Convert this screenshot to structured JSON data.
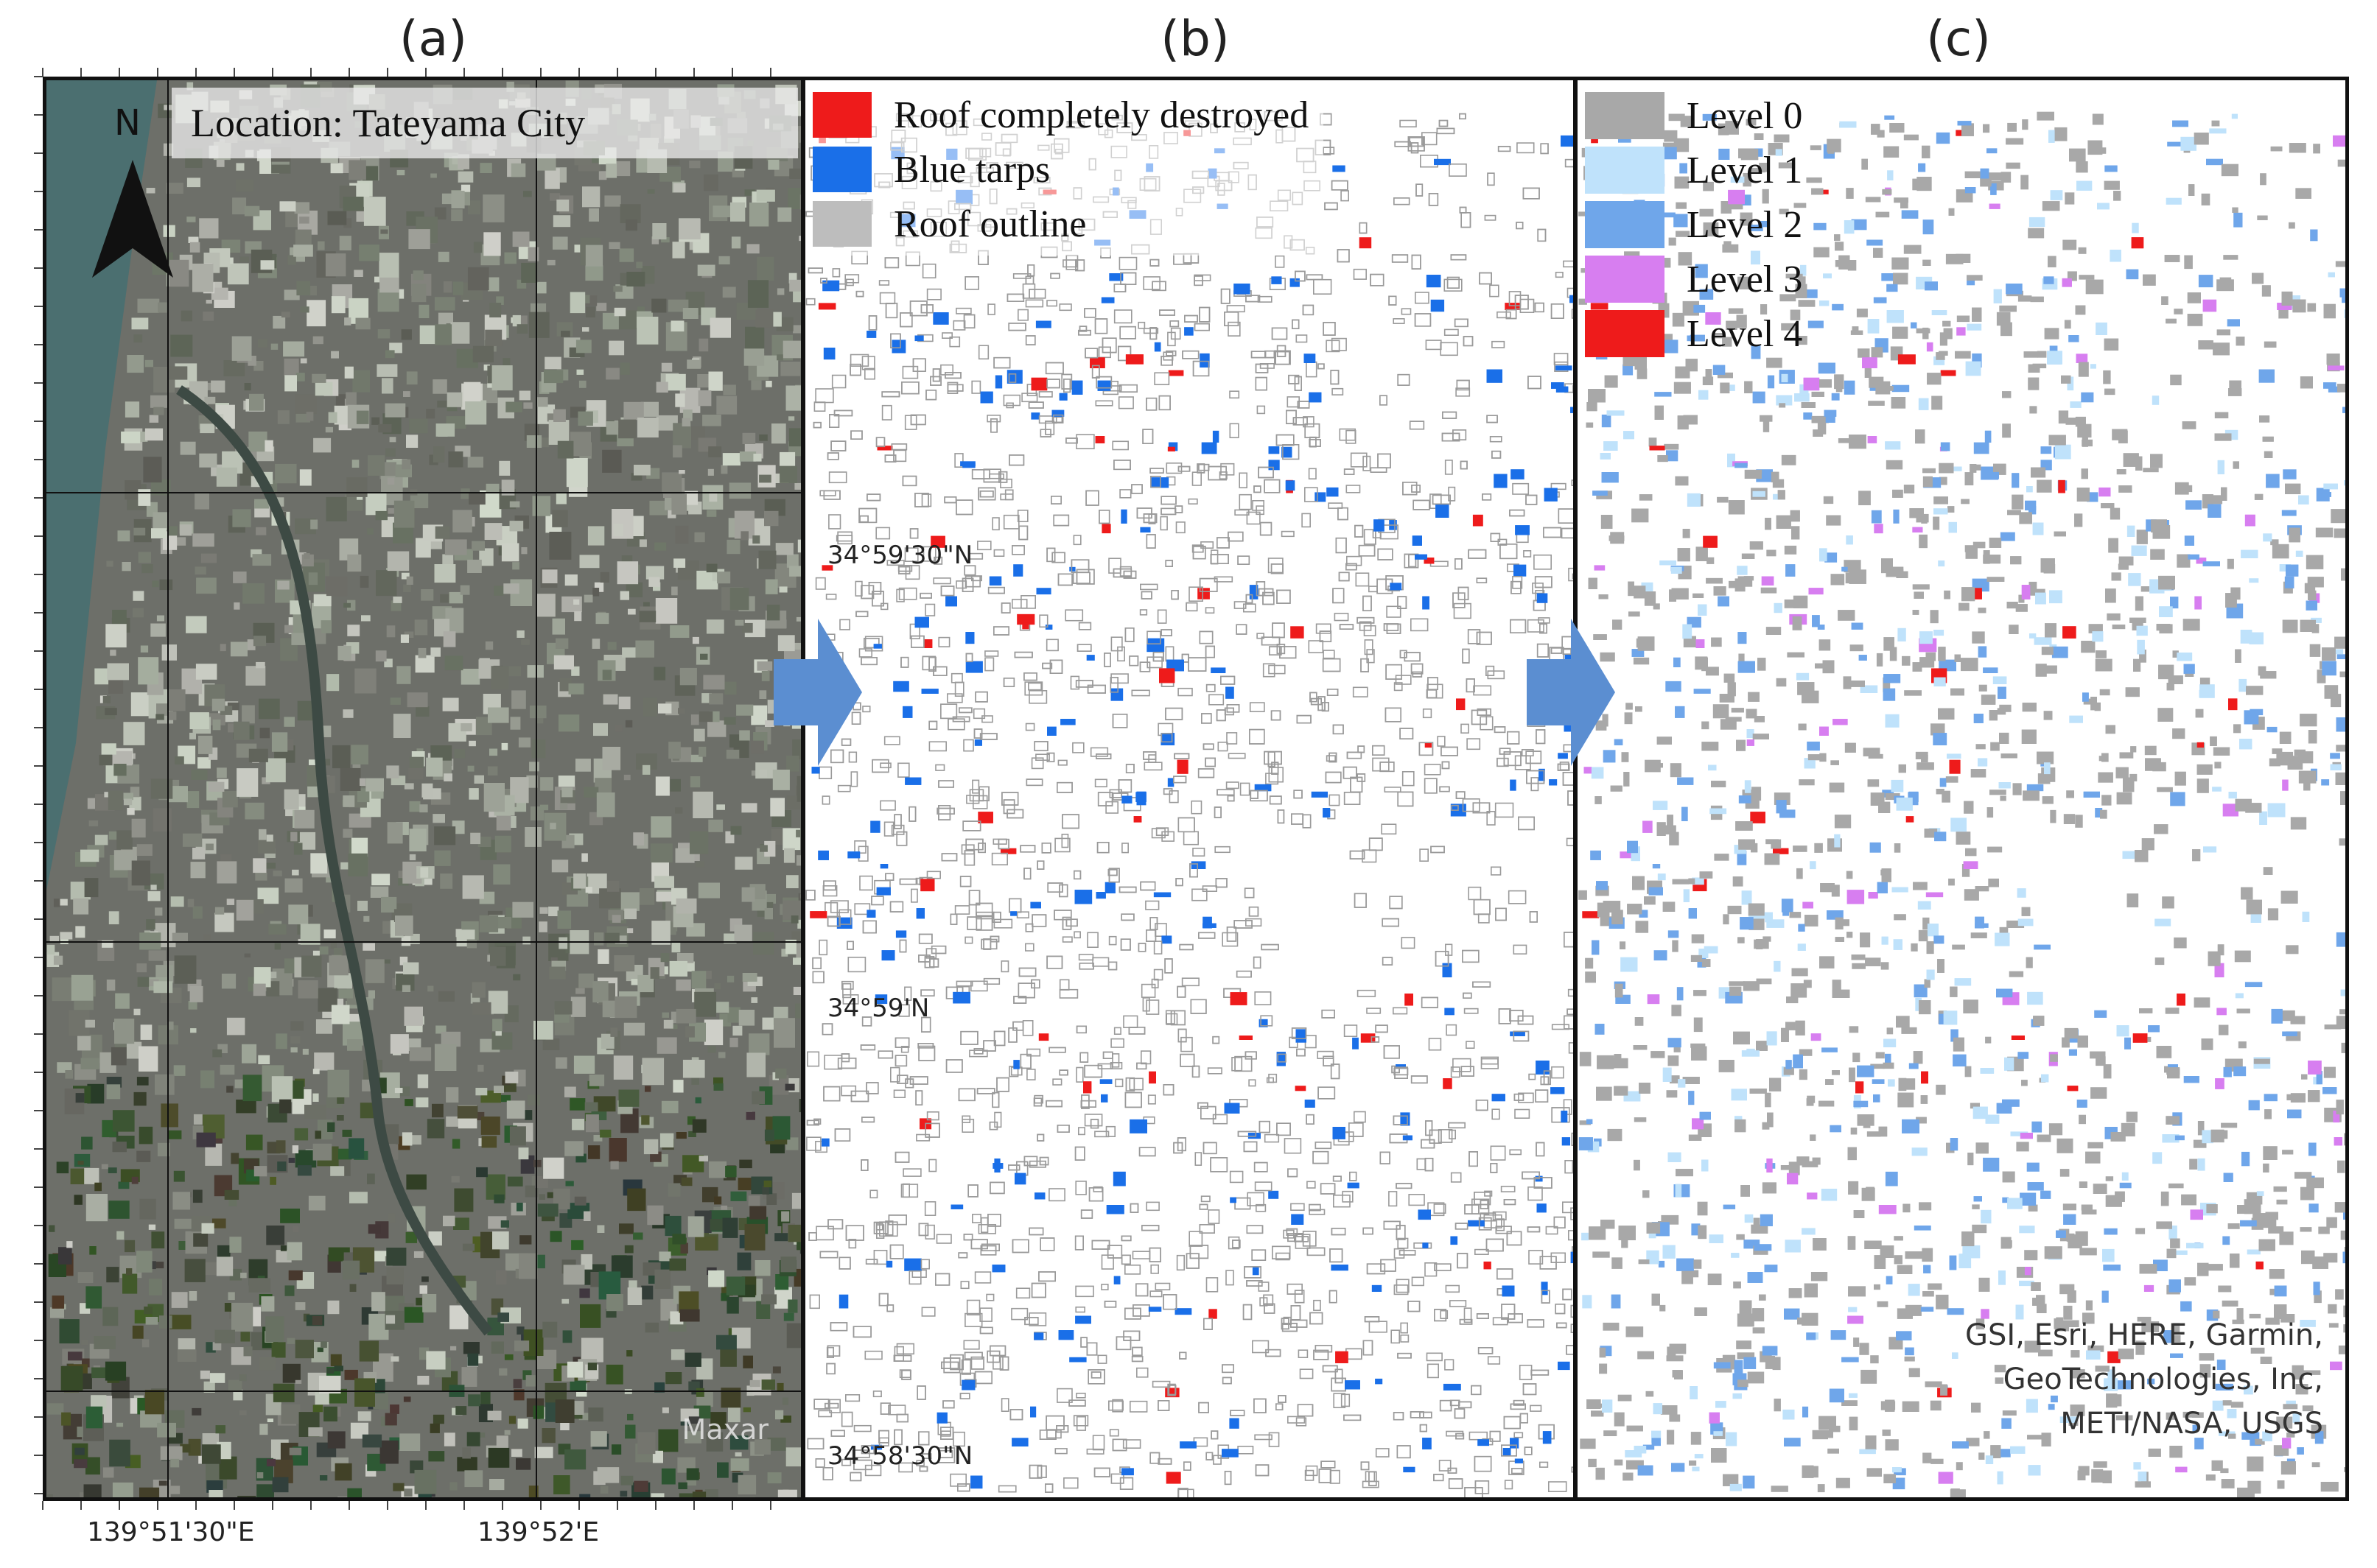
{
  "panels": {
    "a": {
      "label": "(a)",
      "location": "Location: Tateyama City",
      "north": "N",
      "imagery_credit": "Maxar"
    },
    "b": {
      "label": "(b)"
    },
    "c": {
      "label": "(c)"
    }
  },
  "legend_b": [
    {
      "label": "Roof completely  destroyed",
      "color": "#ee1b1b"
    },
    {
      "label": "Blue tarps",
      "color": "#1a6fe8"
    },
    {
      "label": "Roof outline",
      "color": "#bdbdbd"
    }
  ],
  "legend_c": [
    {
      "label": "Level 0",
      "color": "#a8a8a8"
    },
    {
      "label": "Level 1",
      "color": "#bfe2fb"
    },
    {
      "label": "Level 2",
      "color": "#6fa6ea"
    },
    {
      "label": "Level 3",
      "color": "#d77ef0"
    },
    {
      "label": "Level 4",
      "color": "#ee1b1b"
    }
  ],
  "latitude_labels": [
    "34°59'30\"N",
    "34°59'N",
    "34°58'30\"N"
  ],
  "longitude_labels": [
    "139°51'30\"E",
    "139°52'E"
  ],
  "attribution": [
    "GSI, Esri, HERE, Garmin,",
    "GeoTechnologies, Inc,",
    "METI/NASA, USGS"
  ],
  "colors": {
    "arrow": "#5b8ed1",
    "frame": "#111111"
  },
  "icons": {
    "north_arrow": "north-arrow-icon",
    "flow_arrow": "right-arrow-icon"
  }
}
